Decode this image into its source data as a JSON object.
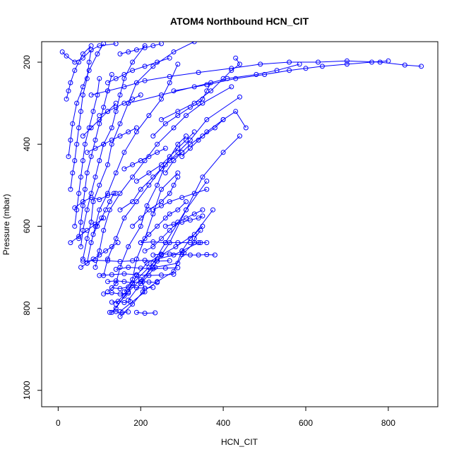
{
  "chart_data": {
    "type": "scatter",
    "title": "ATOM4 Northbound HCN_CIT",
    "xlabel": "HCN_CIT",
    "ylabel": "Pressure (mbar)",
    "xlim": [
      -40,
      920
    ],
    "ylim": [
      1040,
      150
    ],
    "y_reversed": true,
    "xticks": [
      0,
      200,
      400,
      600,
      800
    ],
    "yticks": [
      200,
      400,
      600,
      800,
      1000
    ],
    "xtick_labels": [
      "0",
      "200",
      "400",
      "600",
      "800"
    ],
    "ytick_labels": [
      "200",
      "400",
      "600",
      "800",
      "1000"
    ],
    "grid": false,
    "legend": "none",
    "series_color": "#0000ff",
    "series": [
      {
        "x": [
          150,
          210,
          205,
          235,
          290,
          305,
          330,
          330,
          345
        ],
        "y": [
          808,
          760,
          735,
          700,
          690,
          665,
          640,
          630,
          610
        ]
      },
      {
        "x": [
          140,
          180,
          220,
          240,
          280,
          300,
          340
        ],
        "y": [
          790,
          740,
          700,
          680,
          670,
          660,
          640
        ]
      },
      {
        "x": [
          130,
          170,
          190,
          215,
          250,
          270,
          310,
          360
        ],
        "y": [
          810,
          760,
          720,
          690,
          670,
          640,
          560,
          490
        ]
      },
      {
        "x": [
          140,
          160,
          200,
          230,
          250,
          285,
          330,
          375
        ],
        "y": [
          800,
          770,
          730,
          700,
          670,
          650,
          620,
          560
        ]
      },
      {
        "x": [
          150,
          180,
          205,
          240,
          280,
          300,
          320,
          350
        ],
        "y": [
          820,
          790,
          760,
          735,
          710,
          660,
          630,
          600
        ]
      },
      {
        "x": [
          170,
          200,
          230,
          260,
          310,
          350,
          400,
          440
        ],
        "y": [
          780,
          740,
          690,
          640,
          560,
          480,
          420,
          380
        ]
      },
      {
        "x": [
          160,
          180,
          190,
          210,
          230,
          250,
          290
        ],
        "y": [
          760,
          730,
          680,
          630,
          570,
          510,
          470
        ]
      },
      {
        "x": [
          120,
          140,
          150,
          170,
          200,
          215,
          240,
          260,
          290,
          310
        ],
        "y": [
          760,
          740,
          700,
          650,
          600,
          550,
          500,
          450,
          400,
          380
        ]
      },
      {
        "x": [
          110,
          120,
          140,
          160,
          190,
          220,
          250,
          290,
          320,
          360,
          440
        ],
        "y": [
          720,
          680,
          630,
          580,
          540,
          500,
          460,
          420,
          390,
          340,
          285
        ]
      },
      {
        "x": [
          90,
          100,
          110,
          125,
          150,
          180,
          210,
          240,
          280,
          310,
          350,
          420
        ],
        "y": [
          700,
          660,
          610,
          560,
          520,
          480,
          440,
          400,
          360,
          330,
          300,
          260
        ]
      },
      {
        "x": [
          70,
          80,
          90,
          100,
          120,
          140,
          160,
          190,
          220,
          250,
          270,
          290
        ],
        "y": [
          690,
          640,
          600,
          560,
          520,
          470,
          420,
          370,
          330,
          290,
          250,
          205
        ]
      },
      {
        "x": [
          60,
          70,
          80,
          85,
          100,
          120,
          130,
          150,
          170,
          190,
          230,
          280,
          330
        ],
        "y": [
          680,
          630,
          590,
          540,
          500,
          450,
          400,
          350,
          300,
          250,
          210,
          175,
          150
        ]
      },
      {
        "x": [
          55,
          60,
          70,
          80,
          90,
          100,
          110,
          130,
          140,
          150,
          160,
          180,
          210
        ],
        "y": [
          650,
          610,
          560,
          520,
          480,
          440,
          400,
          360,
          320,
          280,
          240,
          200,
          160
        ]
      },
      {
        "x": [
          50,
          55,
          60,
          65,
          70,
          80,
          90,
          100,
          110,
          120,
          130
        ],
        "y": [
          630,
          590,
          550,
          510,
          470,
          430,
          390,
          350,
          310,
          270,
          230
        ]
      },
      {
        "x": [
          40,
          45,
          50,
          55,
          60,
          65,
          75,
          85,
          95,
          100
        ],
        "y": [
          600,
          560,
          520,
          480,
          440,
          400,
          360,
          320,
          280,
          240
        ]
      },
      {
        "x": [
          30,
          35,
          40,
          45,
          50,
          55,
          60,
          70,
          75,
          80
        ],
        "y": [
          510,
          470,
          440,
          400,
          360,
          320,
          280,
          240,
          200,
          170
        ]
      },
      {
        "x": [
          25,
          30,
          35,
          45,
          60,
          75,
          95,
          110
        ],
        "y": [
          430,
          390,
          350,
          300,
          260,
          220,
          180,
          155
        ]
      },
      {
        "x": [
          20,
          25,
          30,
          40,
          50,
          60,
          80
        ],
        "y": [
          290,
          270,
          250,
          220,
          200,
          180,
          160
        ]
      },
      {
        "x": [
          10,
          20,
          40,
          60,
          80,
          100,
          140
        ],
        "y": [
          175,
          185,
          200,
          190,
          170,
          160,
          155
        ]
      },
      {
        "x": [
          80,
          120,
          160,
          210,
          270,
          340,
          420,
          490,
          560,
          630,
          700,
          780,
          840,
          880
        ],
        "y": [
          280,
          270,
          260,
          245,
          235,
          225,
          215,
          205,
          200,
          200,
          197,
          200,
          207,
          210
        ]
      },
      {
        "x": [
          280,
          360,
          430,
          500,
          560,
          600,
          640,
          700,
          760,
          800
        ],
        "y": [
          270,
          255,
          240,
          230,
          220,
          215,
          210,
          205,
          200,
          197
        ]
      },
      {
        "x": [
          170,
          250,
          330,
          410,
          480,
          530,
          585
        ],
        "y": [
          300,
          280,
          260,
          240,
          230,
          220,
          205
        ]
      },
      {
        "x": [
          250,
          290,
          330,
          370,
          400,
          420,
          440,
          430
        ],
        "y": [
          340,
          320,
          300,
          270,
          240,
          220,
          205,
          190
        ]
      },
      {
        "x": [
          230,
          260,
          290,
          320,
          340,
          350,
          360,
          370
        ],
        "y": [
          380,
          350,
          330,
          310,
          300,
          290,
          270,
          250
        ]
      },
      {
        "x": [
          300,
          320,
          340,
          360,
          400,
          430,
          455
        ],
        "y": [
          430,
          410,
          390,
          370,
          340,
          320,
          360
        ]
      },
      {
        "x": [
          260,
          280,
          300,
          320,
          350,
          380,
          400
        ],
        "y": [
          470,
          440,
          420,
          400,
          380,
          360,
          340
        ]
      },
      {
        "x": [
          190,
          220,
          250,
          270,
          290,
          310,
          330
        ],
        "y": [
          490,
          470,
          450,
          430,
          410,
          390,
          370
        ]
      },
      {
        "x": [
          150,
          180,
          200,
          230,
          250,
          270,
          300
        ],
        "y": [
          560,
          540,
          510,
          480,
          460,
          440,
          420
        ]
      },
      {
        "x": [
          180,
          200,
          220,
          250,
          270,
          280,
          290
        ],
        "y": [
          600,
          580,
          560,
          540,
          520,
          500,
          480
        ]
      },
      {
        "x": [
          200,
          220,
          240,
          260,
          270,
          290,
          310
        ],
        "y": [
          640,
          620,
          600,
          580,
          570,
          560,
          540
        ]
      },
      {
        "x": [
          210,
          230,
          250,
          270,
          290,
          310,
          330,
          350
        ],
        "y": [
          660,
          650,
          630,
          610,
          590,
          580,
          570,
          560
        ]
      },
      {
        "x": [
          230,
          250,
          270,
          300,
          320,
          340,
          360,
          380
        ],
        "y": [
          670,
          668,
          668,
          669,
          670,
          670,
          669,
          670
        ]
      },
      {
        "x": [
          200,
          230,
          260,
          290,
          320,
          345,
          360
        ],
        "y": [
          640,
          638,
          640,
          640,
          640,
          640,
          640
        ]
      },
      {
        "x": [
          120,
          140,
          160,
          180,
          200,
          220,
          240
        ],
        "y": [
          735,
          733,
          735,
          738,
          735,
          736,
          737
        ]
      },
      {
        "x": [
          130,
          150,
          170,
          190,
          210,
          230
        ],
        "y": [
          750,
          752,
          748,
          750,
          751,
          749
        ]
      },
      {
        "x": [
          110,
          130,
          150,
          170
        ],
        "y": [
          765,
          762,
          765,
          763
        ]
      },
      {
        "x": [
          130,
          145,
          160,
          175
        ],
        "y": [
          785,
          783,
          786,
          784
        ]
      },
      {
        "x": [
          125,
          140,
          155,
          170
        ],
        "y": [
          810,
          808,
          811,
          809
        ]
      },
      {
        "x": [
          190,
          210,
          235
        ],
        "y": [
          810,
          812,
          811
        ]
      },
      {
        "x": [
          60,
          90,
          120,
          150,
          180,
          210,
          240,
          270
        ],
        "y": [
          685,
          683,
          684,
          686,
          684,
          683,
          685,
          684
        ]
      },
      {
        "x": [
          140,
          170,
          200,
          230,
          260,
          290
        ],
        "y": [
          705,
          700,
          702,
          704,
          702,
          701
        ]
      },
      {
        "x": [
          100,
          130,
          160,
          190,
          220,
          250,
          280
        ],
        "y": [
          720,
          718,
          716,
          718,
          720,
          719,
          717
        ]
      },
      {
        "x": [
          40,
          60,
          80,
          100,
          120,
          140
        ],
        "y": [
          555,
          540,
          530,
          535,
          525,
          520
        ]
      },
      {
        "x": [
          70,
          90,
          110,
          130,
          150,
          170,
          190
        ],
        "y": [
          420,
          410,
          400,
          390,
          380,
          370,
          360
        ]
      },
      {
        "x": [
          100,
          120,
          140,
          160,
          180,
          200
        ],
        "y": [
          330,
          320,
          310,
          300,
          290,
          280
        ]
      },
      {
        "x": [
          120,
          140,
          160,
          180,
          210,
          240,
          270
        ],
        "y": [
          250,
          240,
          230,
          220,
          210,
          200,
          190
        ]
      },
      {
        "x": [
          150,
          170,
          190,
          210,
          230,
          250
        ],
        "y": [
          180,
          175,
          170,
          165,
          160,
          155
        ]
      },
      {
        "x": [
          60,
          80,
          100,
          120,
          140
        ],
        "y": [
          380,
          360,
          340,
          320,
          300
        ]
      },
      {
        "x": [
          230,
          250,
          270,
          300,
          330,
          360
        ],
        "y": [
          560,
          550,
          540,
          530,
          520,
          510
        ]
      },
      {
        "x": [
          260,
          280,
          300,
          320,
          340,
          350
        ],
        "y": [
          600,
          595,
          590,
          585,
          580,
          575
        ]
      },
      {
        "x": [
          160,
          180,
          200,
          220,
          240,
          260
        ],
        "y": [
          460,
          450,
          440,
          430,
          420,
          410
        ]
      },
      {
        "x": [
          85,
          95,
          105,
          115,
          125,
          135
        ],
        "y": [
          620,
          600,
          580,
          560,
          540,
          520
        ]
      },
      {
        "x": [
          30,
          50,
          70,
          90,
          110
        ],
        "y": [
          640,
          625,
          610,
          595,
          580
        ]
      },
      {
        "x": [
          55,
          70,
          85,
          100,
          115,
          130,
          145
        ],
        "y": [
          700,
          690,
          680,
          670,
          660,
          650,
          640
        ]
      }
    ]
  }
}
